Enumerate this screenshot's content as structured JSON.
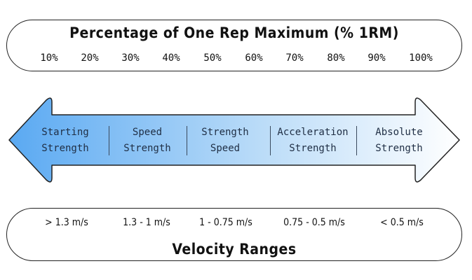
{
  "top": {
    "title": "Percentage of One Rep Maximum (% 1RM)",
    "percentages": [
      "10%",
      "20%",
      "30%",
      "40%",
      "50%",
      "60%",
      "70%",
      "80%",
      "90%",
      "100%"
    ]
  },
  "zones": [
    {
      "line1": "Starting",
      "line2": "Strength"
    },
    {
      "line1": "Speed",
      "line2": "Strength"
    },
    {
      "line1": "Strength",
      "line2": "Speed"
    },
    {
      "line1": "Acceleration",
      "line2": "Strength"
    },
    {
      "line1": "Absolute",
      "line2": "Strength"
    }
  ],
  "bottom": {
    "title": "Velocity Ranges",
    "velocities": [
      "> 1.3 m/s",
      "1.3 - 1 m/s",
      "1 - 0.75 m/s",
      "0.75 - 0.5 m/s",
      "< 0.5 m/s"
    ]
  },
  "colors": {
    "arrow_left": "#5aa9f2",
    "arrow_right": "#ffffff",
    "outline": "#222222"
  }
}
